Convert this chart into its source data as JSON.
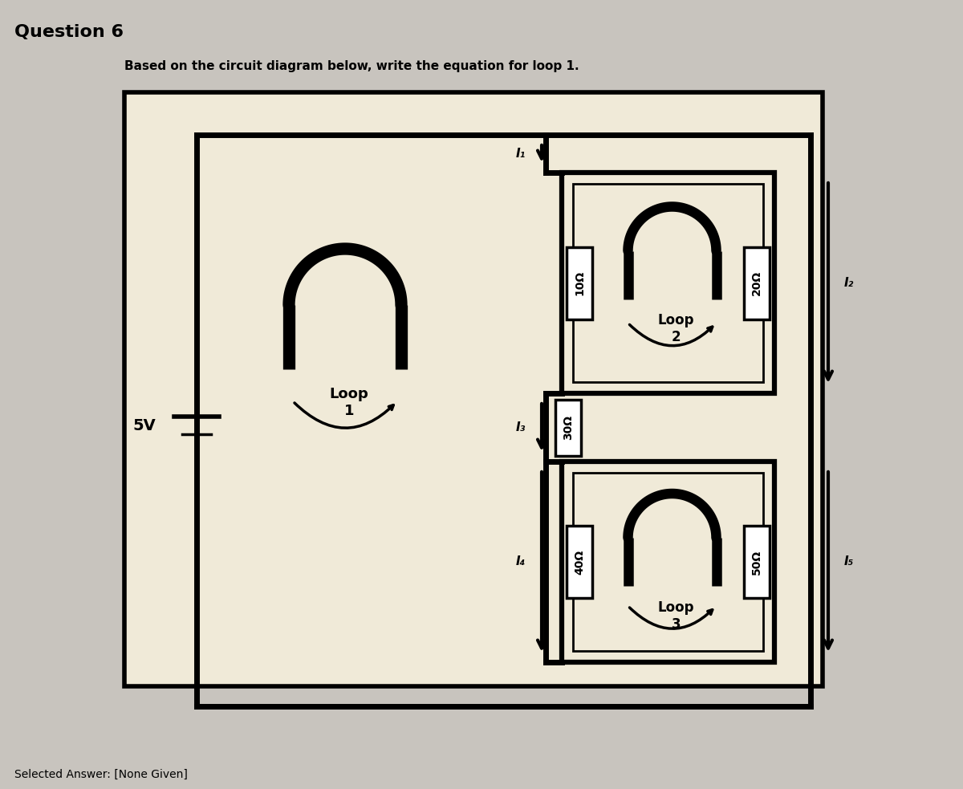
{
  "title": "Question 6",
  "subtitle": "Based on the circuit diagram below, write the equation for loop 1.",
  "selected_answer": "Selected Answer: [None Given]",
  "bg_outer": "#c8c4be",
  "bg_inner": "#f0ead8",
  "loop1_label": "Loop\n1",
  "loop2_label": "Loop\n2",
  "loop3_label": "Loop\n3",
  "voltage_label": "5V",
  "r1_label": "10Ω",
  "r2_label": "20Ω",
  "r3_label": "30Ω",
  "r4_label": "40Ω",
  "r5_label": "50Ω",
  "i1_label": "I₁",
  "i2_label": "I₂",
  "i3_label": "I₃",
  "i4_label": "I₄",
  "i5_label": "I₅"
}
